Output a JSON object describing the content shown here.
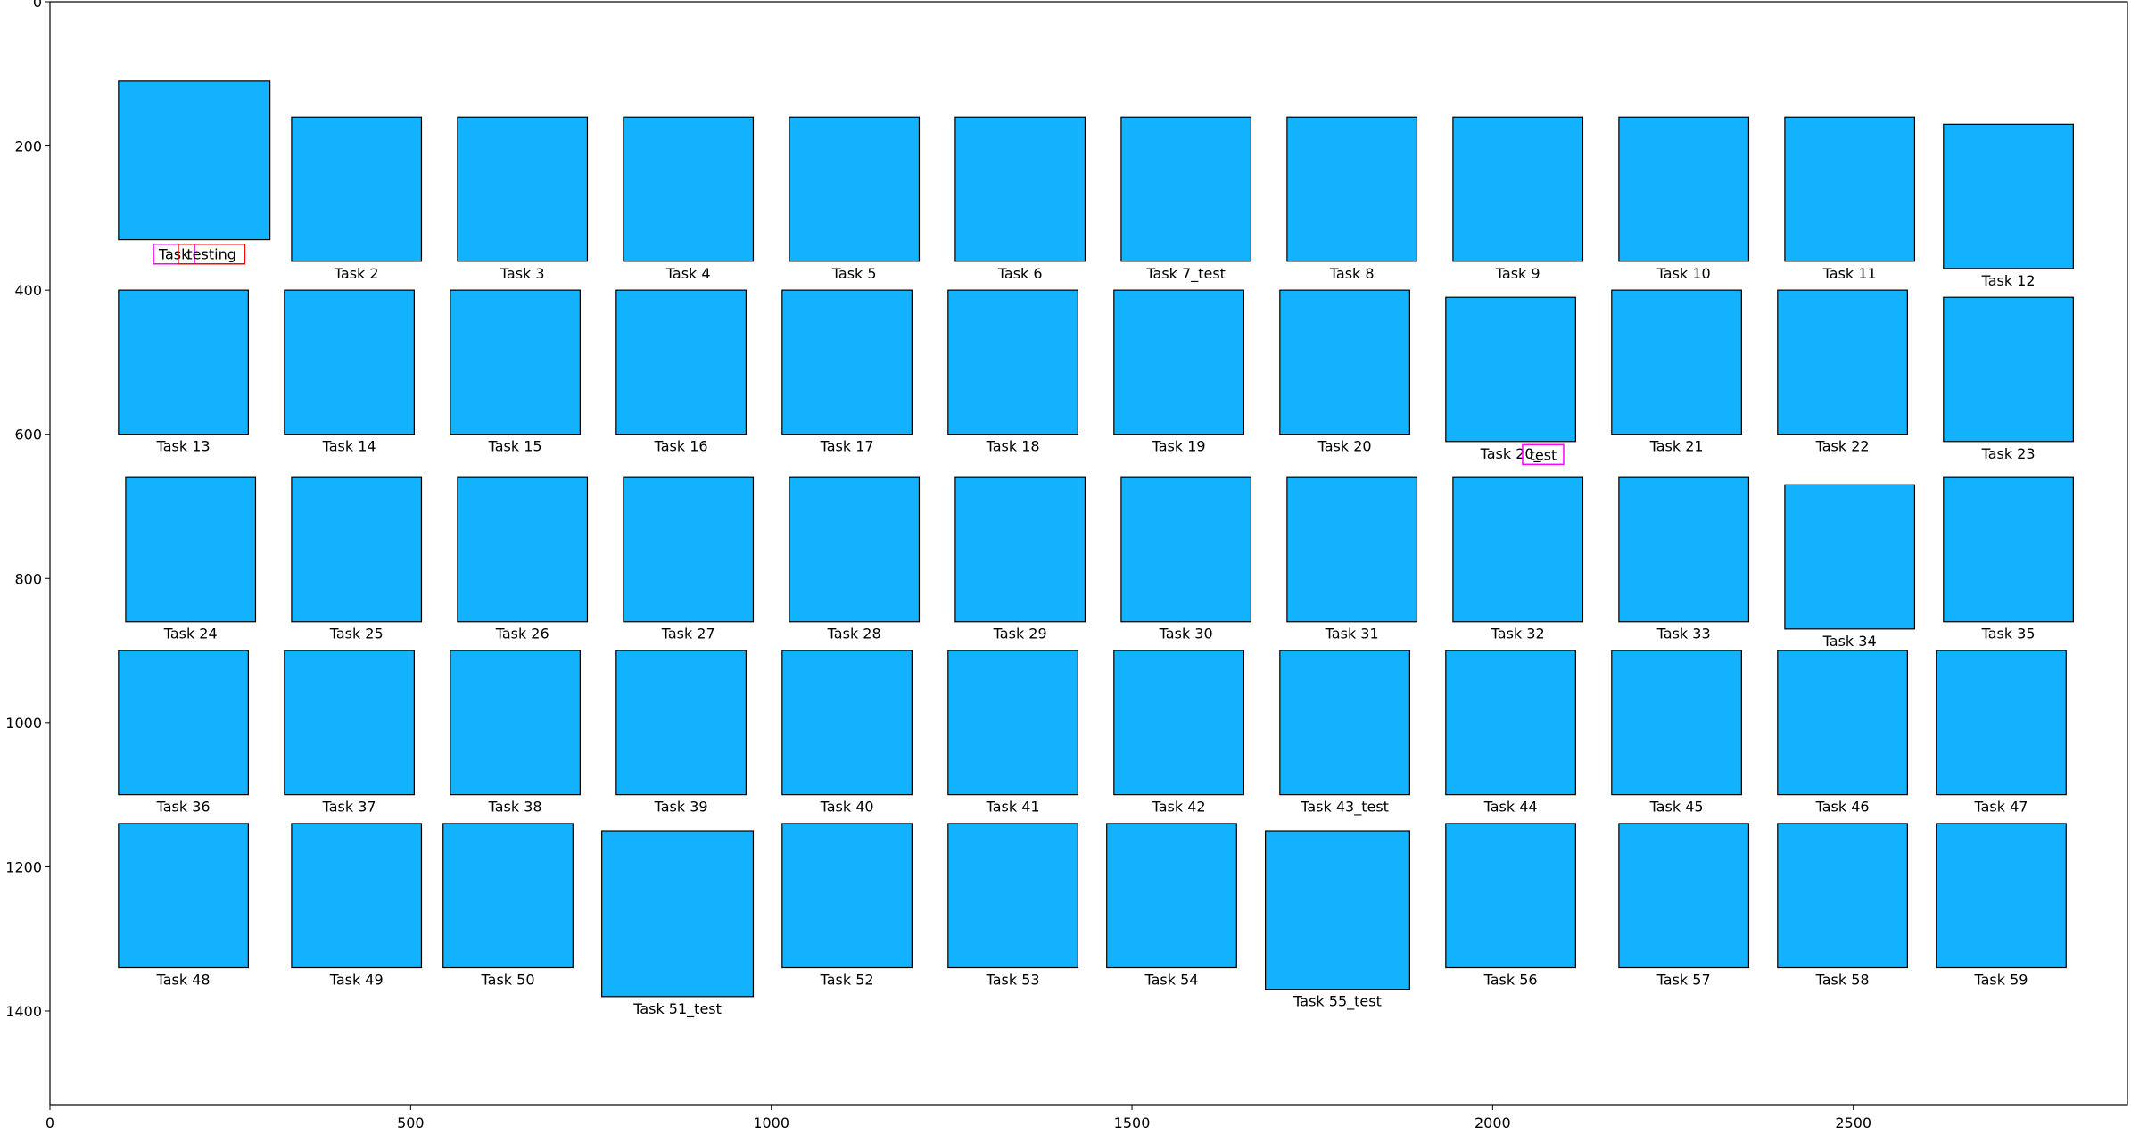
{
  "chart_data": {
    "type": "diagram",
    "title": "",
    "xlabel": "",
    "ylabel": "",
    "xlim": [
      0,
      2880
    ],
    "ylim": [
      1530,
      0
    ],
    "x_ticks": [
      0,
      500,
      1000,
      1500,
      2000,
      2500
    ],
    "y_ticks": [
      0,
      200,
      400,
      600,
      800,
      1000,
      1200,
      1400
    ],
    "box_color": "#13b2ff",
    "edge_color": "#000000",
    "tasks": [
      {
        "label": "",
        "x": 95,
        "y": 110,
        "w": 210,
        "h": 220
      },
      {
        "label": "Task 2",
        "x": 335,
        "y": 160,
        "w": 180,
        "h": 200
      },
      {
        "label": "Task 3",
        "x": 565,
        "y": 160,
        "w": 180,
        "h": 200
      },
      {
        "label": "Task 4",
        "x": 795,
        "y": 160,
        "w": 180,
        "h": 200
      },
      {
        "label": "Task 5",
        "x": 1025,
        "y": 160,
        "w": 180,
        "h": 200
      },
      {
        "label": "Task 6",
        "x": 1255,
        "y": 160,
        "w": 180,
        "h": 200
      },
      {
        "label": "Task 7_test",
        "x": 1485,
        "y": 160,
        "w": 180,
        "h": 200
      },
      {
        "label": "Task 8",
        "x": 1715,
        "y": 160,
        "w": 180,
        "h": 200
      },
      {
        "label": "Task 9",
        "x": 1945,
        "y": 160,
        "w": 180,
        "h": 200
      },
      {
        "label": "Task 10",
        "x": 2175,
        "y": 160,
        "w": 180,
        "h": 200
      },
      {
        "label": "Task 11",
        "x": 2405,
        "y": 160,
        "w": 180,
        "h": 200
      },
      {
        "label": "Task 12",
        "x": 2625,
        "y": 170,
        "w": 180,
        "h": 200
      },
      {
        "label": "Task 13",
        "x": 95,
        "y": 400,
        "w": 180,
        "h": 200
      },
      {
        "label": "Task 14",
        "x": 325,
        "y": 400,
        "w": 180,
        "h": 200
      },
      {
        "label": "Task 15",
        "x": 555,
        "y": 400,
        "w": 180,
        "h": 200
      },
      {
        "label": "Task 16",
        "x": 785,
        "y": 400,
        "w": 180,
        "h": 200
      },
      {
        "label": "Task 17",
        "x": 1015,
        "y": 400,
        "w": 180,
        "h": 200
      },
      {
        "label": "Task 18",
        "x": 1245,
        "y": 400,
        "w": 180,
        "h": 200
      },
      {
        "label": "Task 19",
        "x": 1475,
        "y": 400,
        "w": 180,
        "h": 200
      },
      {
        "label": "Task 20",
        "x": 1705,
        "y": 400,
        "w": 180,
        "h": 200
      },
      {
        "label": "Task 20_",
        "x": 1935,
        "y": 410,
        "w": 180,
        "h": 200
      },
      {
        "label": "Task 21",
        "x": 2165,
        "y": 400,
        "w": 180,
        "h": 200
      },
      {
        "label": "Task 22",
        "x": 2395,
        "y": 400,
        "w": 180,
        "h": 200
      },
      {
        "label": "Task 23",
        "x": 2625,
        "y": 410,
        "w": 180,
        "h": 200
      },
      {
        "label": "Task 24",
        "x": 105,
        "y": 660,
        "w": 180,
        "h": 200
      },
      {
        "label": "Task 25",
        "x": 335,
        "y": 660,
        "w": 180,
        "h": 200
      },
      {
        "label": "Task 26",
        "x": 565,
        "y": 660,
        "w": 180,
        "h": 200
      },
      {
        "label": "Task 27",
        "x": 795,
        "y": 660,
        "w": 180,
        "h": 200
      },
      {
        "label": "Task 28",
        "x": 1025,
        "y": 660,
        "w": 180,
        "h": 200
      },
      {
        "label": "Task 29",
        "x": 1255,
        "y": 660,
        "w": 180,
        "h": 200
      },
      {
        "label": "Task 30",
        "x": 1485,
        "y": 660,
        "w": 180,
        "h": 200
      },
      {
        "label": "Task 31",
        "x": 1715,
        "y": 660,
        "w": 180,
        "h": 200
      },
      {
        "label": "Task 32",
        "x": 1945,
        "y": 660,
        "w": 180,
        "h": 200
      },
      {
        "label": "Task 33",
        "x": 2175,
        "y": 660,
        "w": 180,
        "h": 200
      },
      {
        "label": "Task 34",
        "x": 2405,
        "y": 670,
        "w": 180,
        "h": 200
      },
      {
        "label": "Task 35",
        "x": 2625,
        "y": 660,
        "w": 180,
        "h": 200
      },
      {
        "label": "Task 36",
        "x": 95,
        "y": 900,
        "w": 180,
        "h": 200
      },
      {
        "label": "Task 37",
        "x": 325,
        "y": 900,
        "w": 180,
        "h": 200
      },
      {
        "label": "Task 38",
        "x": 555,
        "y": 900,
        "w": 180,
        "h": 200
      },
      {
        "label": "Task 39",
        "x": 785,
        "y": 900,
        "w": 180,
        "h": 200
      },
      {
        "label": "Task 40",
        "x": 1015,
        "y": 900,
        "w": 180,
        "h": 200
      },
      {
        "label": "Task 41",
        "x": 1245,
        "y": 900,
        "w": 180,
        "h": 200
      },
      {
        "label": "Task 42",
        "x": 1475,
        "y": 900,
        "w": 180,
        "h": 200
      },
      {
        "label": "Task 43_test",
        "x": 1705,
        "y": 900,
        "w": 180,
        "h": 200
      },
      {
        "label": "Task 44",
        "x": 1935,
        "y": 900,
        "w": 180,
        "h": 200
      },
      {
        "label": "Task 45",
        "x": 2165,
        "y": 900,
        "w": 180,
        "h": 200
      },
      {
        "label": "Task 46",
        "x": 2395,
        "y": 900,
        "w": 180,
        "h": 200
      },
      {
        "label": "Task 47",
        "x": 2615,
        "y": 900,
        "w": 180,
        "h": 200
      },
      {
        "label": "Task 48",
        "x": 95,
        "y": 1140,
        "w": 180,
        "h": 200
      },
      {
        "label": "Task 49",
        "x": 335,
        "y": 1140,
        "w": 180,
        "h": 200
      },
      {
        "label": "Task 50",
        "x": 545,
        "y": 1140,
        "w": 180,
        "h": 200
      },
      {
        "label": "Task 51_test",
        "x": 765,
        "y": 1150,
        "w": 210,
        "h": 230
      },
      {
        "label": "Task 52",
        "x": 1015,
        "y": 1140,
        "w": 180,
        "h": 200
      },
      {
        "label": "Task 53",
        "x": 1245,
        "y": 1140,
        "w": 180,
        "h": 200
      },
      {
        "label": "Task 54",
        "x": 1465,
        "y": 1140,
        "w": 180,
        "h": 200
      },
      {
        "label": "Task 55_test",
        "x": 1685,
        "y": 1150,
        "w": 200,
        "h": 220
      },
      {
        "label": "Task 56",
        "x": 1935,
        "y": 1140,
        "w": 180,
        "h": 200
      },
      {
        "label": "Task 57",
        "x": 2175,
        "y": 1140,
        "w": 180,
        "h": 200
      },
      {
        "label": "Task 58",
        "x": 2395,
        "y": 1140,
        "w": 180,
        "h": 200
      },
      {
        "label": "Task 59",
        "x": 2615,
        "y": 1140,
        "w": 180,
        "h": 200
      }
    ],
    "annotations": [
      {
        "text": "Task",
        "color": "#ff00ff",
        "x": 172,
        "y": 350
      },
      {
        "text": "testing",
        "color": "#ff0000",
        "x": 224,
        "y": 350
      },
      {
        "text": "test",
        "color": "#ff00ff",
        "x": 2070,
        "y": 628
      }
    ]
  }
}
